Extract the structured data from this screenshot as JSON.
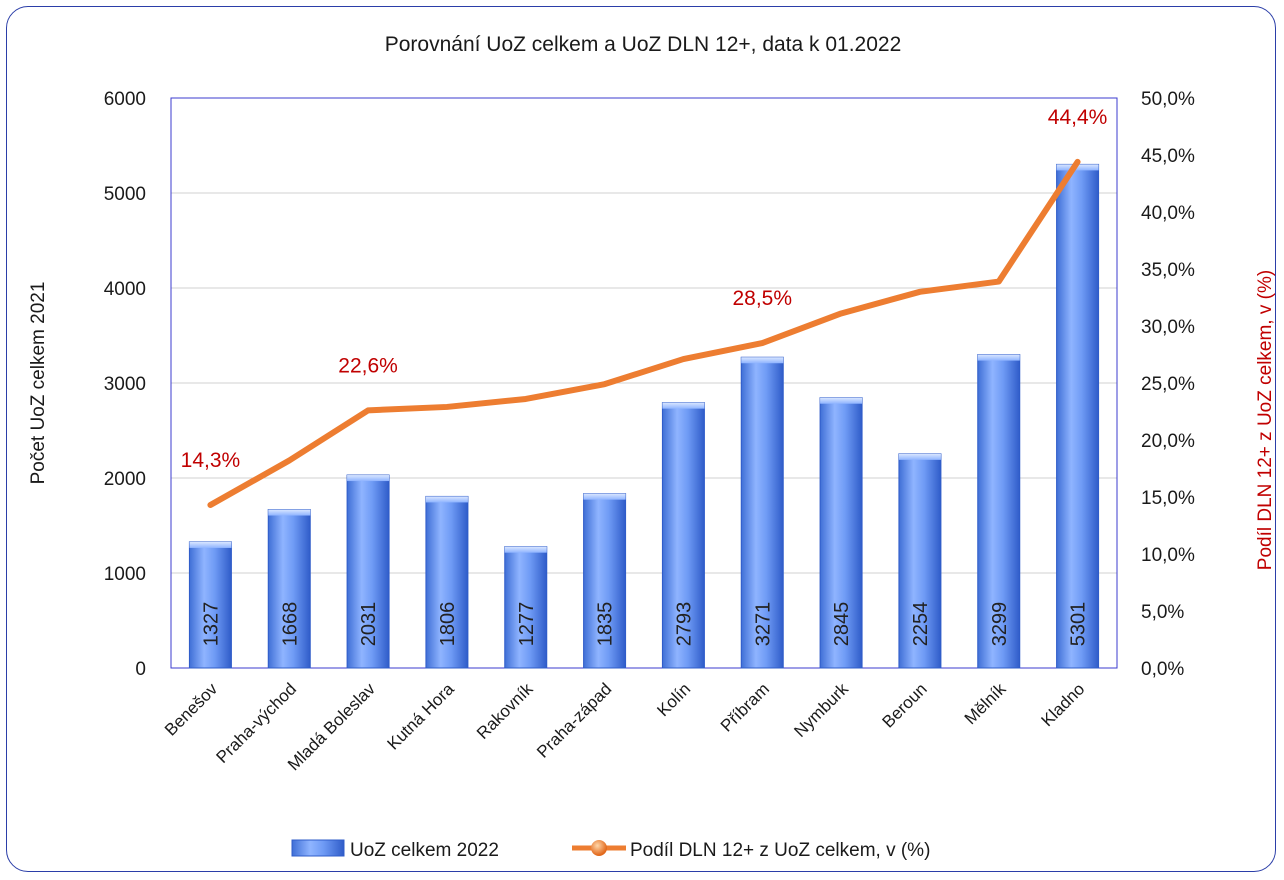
{
  "chart_data": {
    "type": "bar",
    "title": "Porovnání UoZ celkem a UoZ DLN 12+, data k 01.2022",
    "ylabel": "Počet UoZ celkem 2021",
    "y2label": "Podíl DLN 12+ z UoZ celkem, v (%)",
    "ylim": [
      0,
      6000
    ],
    "y2lim": [
      0,
      50
    ],
    "yticks": [
      "0",
      "1000",
      "2000",
      "3000",
      "4000",
      "5000",
      "6000"
    ],
    "y2ticks": [
      "0,0%",
      "5,0%",
      "10,0%",
      "15,0%",
      "20,0%",
      "25,0%",
      "30,0%",
      "35,0%",
      "40,0%",
      "45,0%",
      "50,0%"
    ],
    "categories": [
      "Benešov",
      "Praha-východ",
      "Mladá Boleslav",
      "Kutná Hora",
      "Rakovník",
      "Praha-západ",
      "Kolín",
      "Příbram",
      "Nymburk",
      "Beroun",
      "Mělník",
      "Kladno"
    ],
    "series": [
      {
        "name": "UoZ celkem 2022",
        "type": "bar",
        "axis": "left",
        "values": [
          1327,
          1668,
          2031,
          1806,
          1277,
          1835,
          2793,
          3271,
          2845,
          2254,
          3299,
          5301
        ],
        "color": "#5b8ff0"
      },
      {
        "name": "Podíl DLN 12+ z UoZ celkem, v  (%)",
        "type": "line",
        "axis": "right",
        "values": [
          14.3,
          18.2,
          22.6,
          22.9,
          23.6,
          24.9,
          27.1,
          28.5,
          31.1,
          33.0,
          33.9,
          44.4
        ],
        "color": "#ed7d31"
      }
    ],
    "point_labels": [
      {
        "index": 0,
        "text": "14,3%"
      },
      {
        "index": 2,
        "text": "22,6%"
      },
      {
        "index": 7,
        "text": "28,5%"
      },
      {
        "index": 11,
        "text": "44,4%"
      }
    ],
    "legend_position": "bottom",
    "grid": true
  }
}
